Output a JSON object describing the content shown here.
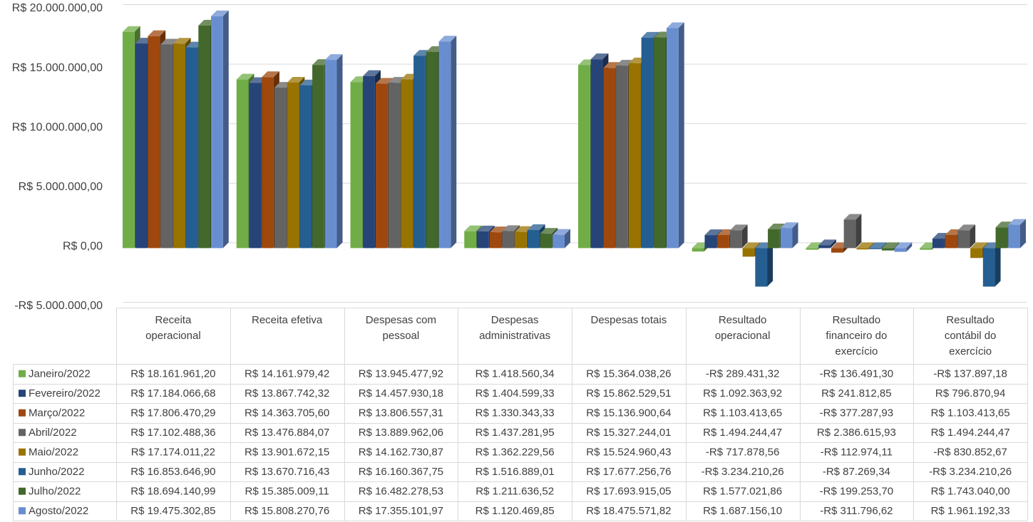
{
  "chart_data": {
    "type": "bar",
    "title": "",
    "xlabel": "",
    "ylabel": "",
    "ylim": [
      -5000000,
      20000000
    ],
    "grid": true,
    "legend_placement": "left of data table",
    "y_tick_labels": [
      "R$ 20.000.000,00",
      "R$ 15.000.000,00",
      "R$ 10.000.000,00",
      "R$ 5.000.000,00",
      "R$ 0,00",
      "-R$ 5.000.000,00"
    ],
    "y_tick_values": [
      20000000,
      15000000,
      10000000,
      5000000,
      0,
      -5000000
    ],
    "categories": [
      [
        "Receita",
        "operacional"
      ],
      [
        "Receita efetiva"
      ],
      [
        "Despesas com",
        "pessoal"
      ],
      [
        "Despesas",
        "administrativas"
      ],
      [
        "Despesas totais"
      ],
      [
        "Resultado",
        "operacional"
      ],
      [
        "Resultado",
        "financeiro do",
        "exercício"
      ],
      [
        "Resultado",
        "contábil do",
        "exercício"
      ]
    ],
    "series": [
      {
        "name": "Janeiro/2022",
        "color": "#70AD47",
        "values": [
          18161961.2,
          14161979.42,
          13945477.92,
          1418560.34,
          15364038.26,
          -289431.32,
          -136491.3,
          -137897.18
        ],
        "labels": [
          "R$ 18.161.961,20",
          "R$ 14.161.979,42",
          "R$ 13.945.477,92",
          "R$ 1.418.560,34",
          "R$ 15.364.038,26",
          "-R$ 289.431,32",
          "-R$ 136.491,30",
          "-R$ 137.897,18"
        ]
      },
      {
        "name": "Fevereiro/2022",
        "color": "#264478",
        "values": [
          17184066.68,
          13867742.32,
          14457930.18,
          1404599.33,
          15862529.51,
          1092363.92,
          241812.85,
          796870.94
        ],
        "labels": [
          "R$ 17.184.066,68",
          "R$ 13.867.742,32",
          "R$ 14.457.930,18",
          "R$ 1.404.599,33",
          "R$ 15.862.529,51",
          "R$ 1.092.363,92",
          "R$ 241.812,85",
          "R$ 796.870,94"
        ]
      },
      {
        "name": "Março/2022",
        "color": "#9E480E",
        "values": [
          17806470.29,
          14363705.6,
          13806557.31,
          1330343.33,
          15136900.64,
          1103413.65,
          -377287.93,
          1103413.65
        ],
        "labels": [
          "R$ 17.806.470,29",
          "R$ 14.363.705,60",
          "R$ 13.806.557,31",
          "R$ 1.330.343,33",
          "R$ 15.136.900,64",
          "R$ 1.103.413,65",
          "-R$ 377.287,93",
          "R$ 1.103.413,65"
        ]
      },
      {
        "name": "Abril/2022",
        "color": "#636363",
        "values": [
          17102488.36,
          13476884.07,
          13889962.06,
          1437281.95,
          15327244.01,
          1494244.47,
          2386615.93,
          1494244.47
        ],
        "labels": [
          "R$ 17.102.488,36",
          "R$ 13.476.884,07",
          "R$ 13.889.962,06",
          "R$ 1.437.281,95",
          "R$ 15.327.244,01",
          "R$ 1.494.244,47",
          "R$ 2.386.615,93",
          "R$ 1.494.244,47"
        ]
      },
      {
        "name": "Maio/2022",
        "color": "#997300",
        "values": [
          17174011.22,
          13901672.15,
          14162730.87,
          1362229.56,
          15524960.43,
          -717878.56,
          -112974.11,
          -830852.67
        ],
        "labels": [
          "R$ 17.174.011,22",
          "R$ 13.901.672,15",
          "R$ 14.162.730,87",
          "R$ 1.362.229,56",
          "R$ 15.524.960,43",
          "-R$ 717.878,56",
          "-R$ 112.974,11",
          "-R$ 830.852,67"
        ]
      },
      {
        "name": "Junho/2022",
        "color": "#255E91",
        "values": [
          16853646.9,
          13670716.43,
          16160367.75,
          1516889.01,
          17677256.76,
          -3234210.26,
          -87269.34,
          -3234210.26
        ],
        "labels": [
          "R$ 16.853.646,90",
          "R$ 13.670.716,43",
          "R$ 16.160.367,75",
          "R$ 1.516.889,01",
          "R$ 17.677.256,76",
          "-R$ 3.234.210,26",
          "-R$ 87.269,34",
          "-R$ 3.234.210,26"
        ]
      },
      {
        "name": "Julho/2022",
        "color": "#43682B",
        "values": [
          18694140.99,
          15385009.11,
          16482278.53,
          1211636.52,
          17693915.05,
          1577021.86,
          -199253.7,
          1743040.0
        ],
        "labels": [
          "R$ 18.694.140,99",
          "R$ 15.385.009,11",
          "R$ 16.482.278,53",
          "R$ 1.211.636,52",
          "R$ 17.693.915,05",
          "R$ 1.577.021,86",
          "-R$ 199.253,70",
          "R$ 1.743.040,00"
        ]
      },
      {
        "name": "Agosto/2022",
        "color": "#698ED0",
        "values": [
          19475302.85,
          15808270.76,
          17355101.97,
          1120469.85,
          18475571.82,
          1687156.1,
          -311796.62,
          1961192.33
        ],
        "labels": [
          "R$ 19.475.302,85",
          "R$ 15.808.270,76",
          "R$ 17.355.101,97",
          "R$ 1.120.469,85",
          "R$ 18.475.571,82",
          "R$ 1.687.156,10",
          "-R$ 311.796,62",
          "R$ 1.961.192,33"
        ]
      }
    ]
  }
}
